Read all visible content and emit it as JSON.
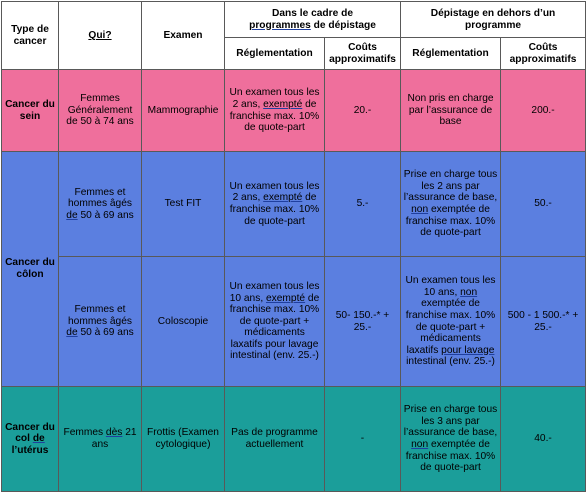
{
  "colors": {
    "header": "#ffffff",
    "sein": "#ef6f9c",
    "colon": "#5b7fe0",
    "uterus": "#1b9e9a",
    "border": "#595959"
  },
  "header": {
    "type": "Type de cancer",
    "qui": "Qui?",
    "examen": "Examen",
    "group1_line1": "Dans le cadre de",
    "group1_line2a": "programmes",
    "group1_line2b": " de dépistage",
    "group2_line1": "Dépistage en dehors d’un",
    "group2_line2": "programme",
    "reglementation": "Réglementation",
    "couts": "Coûts approximatifs"
  },
  "rows": {
    "sein": {
      "type": "Cancer du sein",
      "qui": "Femmes Généralement de 50 à 74 ans",
      "examen": "Mammographie",
      "reg1_a": "Un examen tous les 2 ans,",
      "reg1_b": "exempté",
      "reg1_c": " de franchise max. 10% de quote-part",
      "cout1": "20.-",
      "reg2": "Non pris en charge par l’assurance de base",
      "cout2": "200.-"
    },
    "colon": {
      "type": "Cancer du côlon",
      "fit": {
        "qui_a": "Femmes et hommes âgés ",
        "qui_b": "de",
        "qui_c": " 50 à 69 ans",
        "examen": "Test FIT",
        "reg1_a": "Un examen tous les 2 ans,",
        "reg1_b": "exempté",
        "reg1_c": " de franchise max. 10% de quote-part",
        "cout1": "5.-",
        "reg2_a": "Prise en charge tous les 2 ans par l’assurance de base,",
        "reg2_b": "non",
        "reg2_c": " exemptée de franchise max. 10% de quote-part",
        "cout2": "50.-"
      },
      "colo": {
        "qui_a": "Femmes et hommes âgés ",
        "qui_b": "de",
        "qui_c": " 50 à 69 ans",
        "examen": "Coloscopie",
        "reg1_a": "Un examen tous les 10 ans,",
        "reg1_b": "exempté",
        "reg1_c": " de franchise max. 10% de quote-part + médicaments laxatifs pour lavage intestinal (env. 25.-)",
        "cout1": "50- 150.-* + 25.-",
        "reg2_a": "Un examen tous les 10 ans,",
        "reg2_b": "non",
        "reg2_c": " exemptée de franchise max. 10% de quote-part + médicaments laxatifs ",
        "reg2_d": "pour lavage",
        "reg2_e": " intestinal (env. 25.-)",
        "cout2": "500 - 1 500.-* + 25.-"
      }
    },
    "uterus": {
      "type_a": "Cancer du col ",
      "type_b": "de",
      "type_c": " l’utérus",
      "qui_a": "Femmes ",
      "qui_b": "dès",
      "qui_c": " 21 ans",
      "examen": "Frottis (Examen cytologique)",
      "reg1": "Pas de programme actuellement",
      "cout1": "-",
      "reg2_a": "Prise en charge tous les 3 ans par l’assurance de base,",
      "reg2_b": "non",
      "reg2_c": " exemptée de franchise max. 10% de quote-part",
      "cout2": "40.-"
    }
  }
}
